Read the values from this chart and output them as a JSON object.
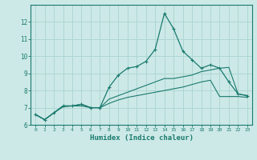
{
  "title": "",
  "xlabel": "Humidex (Indice chaleur)",
  "background_color": "#cce9e7",
  "line_color": "#1a7a6e",
  "grid_color": "#aed6d3",
  "xlim": [
    -0.5,
    23.5
  ],
  "ylim": [
    6,
    13
  ],
  "yticks": [
    6,
    7,
    8,
    9,
    10,
    11,
    12
  ],
  "xticks": [
    0,
    1,
    2,
    3,
    4,
    5,
    6,
    7,
    8,
    9,
    10,
    11,
    12,
    13,
    14,
    15,
    16,
    17,
    18,
    19,
    20,
    21,
    22,
    23
  ],
  "line1_x": [
    0,
    1,
    2,
    3,
    4,
    5,
    6,
    7,
    8,
    9,
    10,
    11,
    12,
    13,
    14,
    15,
    16,
    17,
    18,
    19,
    20,
    21,
    22,
    23
  ],
  "line1_y": [
    6.6,
    6.3,
    6.7,
    7.1,
    7.1,
    7.2,
    7.0,
    7.0,
    8.2,
    8.9,
    9.3,
    9.4,
    9.7,
    10.4,
    12.5,
    11.6,
    10.3,
    9.8,
    9.3,
    9.5,
    9.3,
    8.5,
    7.8,
    7.7
  ],
  "line2_x": [
    0,
    1,
    2,
    3,
    4,
    5,
    6,
    7,
    8,
    9,
    10,
    11,
    12,
    13,
    14,
    15,
    16,
    17,
    18,
    19,
    20,
    21,
    22,
    23
  ],
  "line2_y": [
    6.6,
    6.3,
    6.7,
    7.1,
    7.1,
    7.2,
    7.0,
    7.0,
    7.5,
    7.7,
    7.9,
    8.1,
    8.3,
    8.5,
    8.7,
    8.7,
    8.8,
    8.9,
    9.1,
    9.2,
    9.3,
    9.35,
    7.8,
    7.7
  ],
  "line3_x": [
    0,
    1,
    2,
    3,
    4,
    5,
    6,
    7,
    8,
    9,
    10,
    11,
    12,
    13,
    14,
    15,
    16,
    17,
    18,
    19,
    20,
    21,
    22,
    23
  ],
  "line3_y": [
    6.6,
    6.3,
    6.7,
    7.05,
    7.1,
    7.1,
    7.0,
    7.0,
    7.25,
    7.45,
    7.6,
    7.7,
    7.8,
    7.9,
    8.0,
    8.1,
    8.2,
    8.35,
    8.5,
    8.6,
    7.65,
    7.65,
    7.65,
    7.6
  ]
}
